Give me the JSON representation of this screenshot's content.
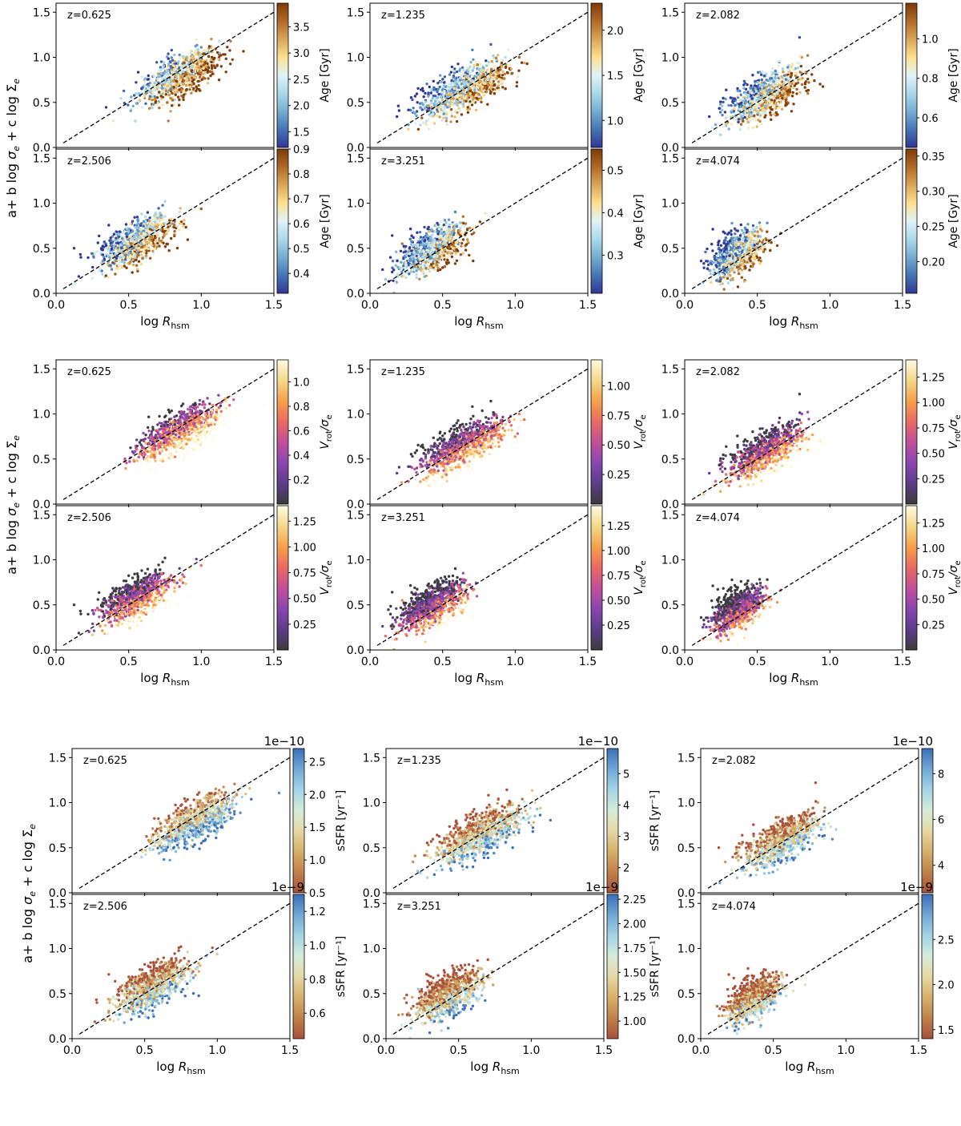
{
  "figure": {
    "title": ""
  },
  "chart_data": {
    "type": "scatter",
    "xlabel_prefix": "log ",
    "xlabel_var": "R",
    "xlabel_sub": "hsm",
    "ylabel": "a+ b log σ_e + c log Σ_e",
    "ylabel_parts": {
      "a": "a+ b log ",
      "sigma": "σ",
      "mid": " + c log ",
      "Sigma": "Σ",
      "sub": "e"
    },
    "xlim": [
      0.0,
      1.5
    ],
    "ylim": [
      0.0,
      1.6
    ],
    "xticks": [
      "0.0",
      "0.5",
      "1.0",
      "1.5"
    ],
    "yticks": [
      "0.0",
      "0.5",
      "1.0",
      "1.5"
    ],
    "fit_line": {
      "slope": 1.0,
      "intercept": 0.0,
      "style": "dashed"
    },
    "blocks": [
      {
        "color_quantity": "Age",
        "cbar_label": "Age [Gyr]",
        "colormap": "RdYlBu-like (blue low, brown high)",
        "panels": [
          {
            "z_label": "z=0.625",
            "cbar_range": [
              1.2,
              3.95
            ],
            "cbar_ticks": [
              "1.5",
              "2.0",
              "2.5",
              "3.0",
              "3.5"
            ],
            "cbar_multiplier": "",
            "x_center": 0.85,
            "x_spread": 0.32
          },
          {
            "z_label": "z=1.235",
            "cbar_range": [
              0.7,
              2.3
            ],
            "cbar_ticks": [
              "1.0",
              "1.5",
              "2.0"
            ],
            "cbar_multiplier": "",
            "x_center": 0.65,
            "x_spread": 0.36
          },
          {
            "z_label": "z=2.082",
            "cbar_range": [
              0.45,
              1.18
            ],
            "cbar_ticks": [
              "0.6",
              "0.8",
              "1.0"
            ],
            "cbar_multiplier": "",
            "x_center": 0.55,
            "x_spread": 0.3
          },
          {
            "z_label": "z=2.506",
            "cbar_range": [
              0.32,
              0.9
            ],
            "cbar_ticks": [
              "0.4",
              "0.5",
              "0.6",
              "0.7",
              "0.8",
              "0.9"
            ],
            "cbar_multiplier": "",
            "x_center": 0.55,
            "x_spread": 0.3
          },
          {
            "z_label": "z=3.251",
            "cbar_range": [
              0.21,
              0.55
            ],
            "cbar_ticks": [
              "0.3",
              "0.4",
              "0.5"
            ],
            "cbar_multiplier": "",
            "x_center": 0.42,
            "x_spread": 0.27
          },
          {
            "z_label": "z=4.074",
            "cbar_range": [
              0.155,
              0.36
            ],
            "cbar_ticks": [
              "0.20",
              "0.25",
              "0.30",
              "0.35"
            ],
            "cbar_multiplier": "",
            "x_center": 0.36,
            "x_spread": 0.2
          }
        ]
      },
      {
        "color_quantity": "V_rot/σ_e",
        "cbar_label_parts": {
          "V": "V",
          "sub": "rot",
          "rest": "/σ",
          "sub2": "e"
        },
        "colormap": "magma-like (dark low, pale yellow high)",
        "panels": [
          {
            "z_label": "z=0.625",
            "cbar_range": [
              0.0,
              1.18
            ],
            "cbar_ticks": [
              "0.2",
              "0.4",
              "0.6",
              "0.8",
              "1.0"
            ],
            "cbar_multiplier": "",
            "x_center": 0.85,
            "x_spread": 0.32
          },
          {
            "z_label": "z=1.235",
            "cbar_range": [
              0.0,
              1.22
            ],
            "cbar_ticks": [
              "0.25",
              "0.50",
              "0.75",
              "1.00"
            ],
            "cbar_multiplier": "",
            "x_center": 0.65,
            "x_spread": 0.36
          },
          {
            "z_label": "z=2.082",
            "cbar_range": [
              0.0,
              1.42
            ],
            "cbar_ticks": [
              "0.25",
              "0.50",
              "0.75",
              "1.00",
              "1.25"
            ],
            "cbar_multiplier": "",
            "x_center": 0.55,
            "x_spread": 0.3
          },
          {
            "z_label": "z=2.506",
            "cbar_range": [
              0.0,
              1.4
            ],
            "cbar_ticks": [
              "0.25",
              "0.50",
              "0.75",
              "1.00",
              "1.25"
            ],
            "cbar_multiplier": "",
            "x_center": 0.55,
            "x_spread": 0.3
          },
          {
            "z_label": "z=3.251",
            "cbar_range": [
              0.0,
              1.45
            ],
            "cbar_ticks": [
              "0.25",
              "0.50",
              "0.75",
              "1.00",
              "1.25"
            ],
            "cbar_multiplier": "",
            "x_center": 0.42,
            "x_spread": 0.27
          },
          {
            "z_label": "z=4.074",
            "cbar_range": [
              0.0,
              1.42
            ],
            "cbar_ticks": [
              "0.25",
              "0.50",
              "0.75",
              "1.00",
              "1.25"
            ],
            "cbar_multiplier": "",
            "x_center": 0.36,
            "x_spread": 0.2
          }
        ]
      },
      {
        "color_quantity": "sSFR",
        "cbar_label": "sSFR [yr⁻¹]",
        "colormap": "RdYlBu-like (brown low, blue high)",
        "panels": [
          {
            "z_label": "z=0.625",
            "cbar_range": [
              0.5,
              2.7
            ],
            "cbar_ticks": [
              "0.5",
              "1.0",
              "1.5",
              "2.0",
              "2.5"
            ],
            "cbar_multiplier": "1e−10",
            "x_center": 0.85,
            "x_spread": 0.32
          },
          {
            "z_label": "z=1.235",
            "cbar_range": [
              1.2,
              5.8
            ],
            "cbar_ticks": [
              "2",
              "3",
              "4",
              "5"
            ],
            "cbar_multiplier": "1e−10",
            "x_center": 0.65,
            "x_spread": 0.36
          },
          {
            "z_label": "z=2.082",
            "cbar_range": [
              2.8,
              9.1
            ],
            "cbar_ticks": [
              "4",
              "6",
              "8"
            ],
            "cbar_multiplier": "1e−10",
            "x_center": 0.55,
            "x_spread": 0.3
          },
          {
            "z_label": "z=2.506",
            "cbar_range": [
              0.45,
              1.3
            ],
            "cbar_ticks": [
              "0.6",
              "0.8",
              "1.0",
              "1.2"
            ],
            "cbar_multiplier": "1e−9",
            "x_center": 0.55,
            "x_spread": 0.3
          },
          {
            "z_label": "z=3.251",
            "cbar_range": [
              0.82,
              2.3
            ],
            "cbar_ticks": [
              "1.00",
              "1.25",
              "1.50",
              "1.75",
              "2.00",
              "2.25"
            ],
            "cbar_multiplier": "1e−9",
            "x_center": 0.42,
            "x_spread": 0.27
          },
          {
            "z_label": "z=4.074",
            "cbar_range": [
              1.4,
              3.0
            ],
            "cbar_ticks": [
              "1.5",
              "2.0",
              "2.5"
            ],
            "cbar_multiplier": "1e−9",
            "x_center": 0.36,
            "x_spread": 0.2
          }
        ]
      }
    ]
  }
}
